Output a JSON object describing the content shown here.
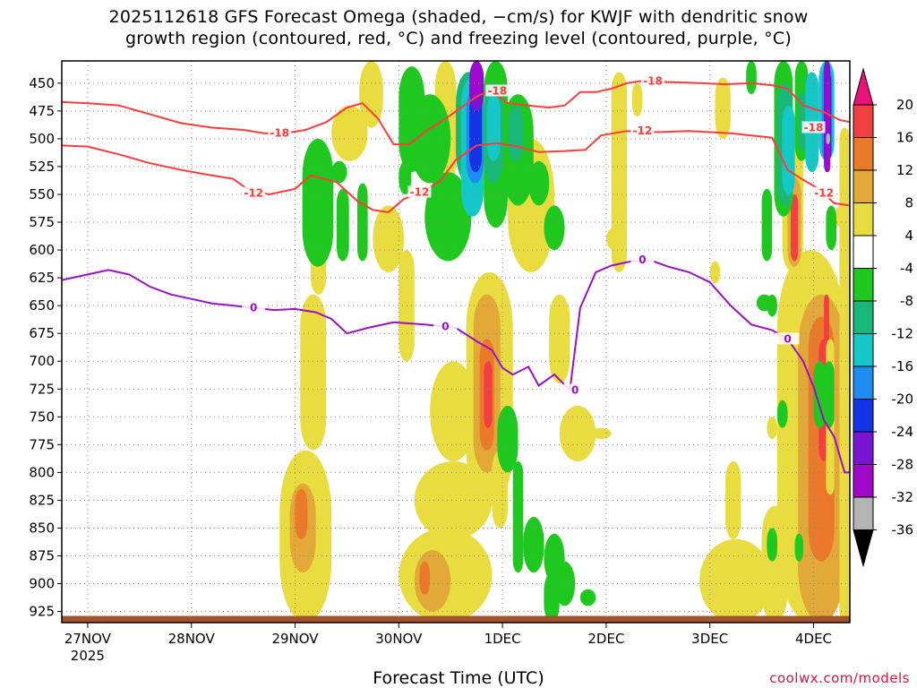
{
  "title_line1": "2025112618 GFS Forecast Omega (shaded, −cm/s) for KWJF with dendritic snow",
  "title_line2": "growth region (contoured, red, °C) and freezing level (contoured, purple, °C)",
  "credit": "coolwx.com/models",
  "chart_data": {
    "type": "heatmap",
    "title": "2025112618 GFS Forecast Omega (shaded, −cm/s) for KWJF with dendritic snow growth region (contoured, red, °C) and freezing level (contoured, purple, °C)",
    "xlabel": "Forecast Time (UTC)",
    "ylabel": "",
    "x_range_days": [
      -0.25,
      7.35
    ],
    "y_range_hpa": [
      430,
      935
    ],
    "y_inverted": true,
    "grid": true,
    "x_ticks": [
      {
        "label": "27NOV",
        "sub": "2025",
        "day": 0
      },
      {
        "label": "28NOV",
        "sub": "",
        "day": 1
      },
      {
        "label": "29NOV",
        "sub": "",
        "day": 2
      },
      {
        "label": "30NOV",
        "sub": "",
        "day": 3
      },
      {
        "label": "1DEC",
        "sub": "",
        "day": 4
      },
      {
        "label": "2DEC",
        "sub": "",
        "day": 5
      },
      {
        "label": "3DEC",
        "sub": "",
        "day": 6
      },
      {
        "label": "4DEC",
        "sub": "",
        "day": 7
      }
    ],
    "y_ticks": [
      "450",
      "475",
      "500",
      "525",
      "550",
      "575",
      "600",
      "625",
      "650",
      "675",
      "700",
      "725",
      "750",
      "775",
      "800",
      "825",
      "850",
      "875",
      "900",
      "925"
    ],
    "y_tick_values": [
      450,
      475,
      500,
      525,
      550,
      575,
      600,
      625,
      650,
      675,
      700,
      725,
      750,
      775,
      800,
      825,
      850,
      875,
      900,
      925
    ],
    "colorbar": {
      "label_values": [
        "20",
        "16",
        "12",
        "8",
        "4",
        "-4",
        "-8",
        "-12",
        "-16",
        "-20",
        "-24",
        "-28",
        "-32",
        "-36"
      ],
      "bins": [
        {
          "range": ">20",
          "color": "#e8127a"
        },
        {
          "range": "16 to 20",
          "color": "#f24040"
        },
        {
          "range": "12 to 16",
          "color": "#ea7a2a"
        },
        {
          "range": "8 to 12",
          "color": "#e2a838"
        },
        {
          "range": "4 to 8",
          "color": "#e8dc40"
        },
        {
          "range": "-4 to 4",
          "color": "#ffffff"
        },
        {
          "range": "-8 to -4",
          "color": "#1ec81e"
        },
        {
          "range": "-12 to -8",
          "color": "#1ab878"
        },
        {
          "range": "-16 to -12",
          "color": "#14c8c8"
        },
        {
          "range": "-20 to -16",
          "color": "#1e8cf0"
        },
        {
          "range": "-24 to -20",
          "color": "#1432e6"
        },
        {
          "range": "-28 to -24",
          "color": "#7814d2"
        },
        {
          "range": "-32 to -28",
          "color": "#a00ac8"
        },
        {
          "range": "-36 to -32",
          "color": "#b4b4b4"
        },
        {
          "range": "<-36",
          "color": "#000000"
        }
      ]
    },
    "contour_series": [
      {
        "name": "-18 °C isotherm",
        "color": "#ff3b3b",
        "label": "-18",
        "points": [
          [
            -0.25,
            467
          ],
          [
            0,
            468
          ],
          [
            0.3,
            470
          ],
          [
            0.6,
            478
          ],
          [
            0.9,
            486
          ],
          [
            1.2,
            490
          ],
          [
            1.5,
            492
          ],
          [
            1.7,
            495
          ],
          [
            1.9,
            495
          ],
          [
            2.1,
            492
          ],
          [
            2.3,
            485
          ],
          [
            2.5,
            472
          ],
          [
            2.65,
            468
          ],
          [
            2.8,
            482
          ],
          [
            2.95,
            505
          ],
          [
            3.1,
            505
          ],
          [
            3.25,
            494
          ],
          [
            3.45,
            482
          ],
          [
            3.6,
            472
          ],
          [
            3.75,
            462
          ],
          [
            3.8,
            460
          ],
          [
            3.9,
            458
          ],
          [
            4.05,
            468
          ],
          [
            4.25,
            470
          ],
          [
            4.45,
            472
          ],
          [
            4.6,
            470
          ],
          [
            4.75,
            458
          ],
          [
            4.9,
            458
          ],
          [
            5.05,
            455
          ],
          [
            5.2,
            450
          ],
          [
            5.35,
            448
          ],
          [
            5.6,
            449
          ],
          [
            5.9,
            450
          ],
          [
            6.15,
            451
          ],
          [
            6.4,
            450
          ],
          [
            6.6,
            452
          ],
          [
            6.75,
            455
          ],
          [
            6.9,
            470
          ],
          [
            7.1,
            476
          ],
          [
            7.25,
            483
          ],
          [
            7.35,
            485
          ]
        ],
        "label_positions": [
          [
            1.85,
            495
          ],
          [
            3.95,
            457
          ],
          [
            5.45,
            448
          ],
          [
            7.0,
            490
          ]
        ]
      },
      {
        "name": "-12 °C isotherm",
        "color": "#ff3b3b",
        "label": "-12",
        "points": [
          [
            -0.25,
            506
          ],
          [
            0,
            507
          ],
          [
            0.3,
            514
          ],
          [
            0.6,
            522
          ],
          [
            0.9,
            528
          ],
          [
            1.2,
            533
          ],
          [
            1.4,
            536
          ],
          [
            1.55,
            546
          ],
          [
            1.75,
            550
          ],
          [
            2.0,
            545
          ],
          [
            2.15,
            533
          ],
          [
            2.4,
            539
          ],
          [
            2.6,
            556
          ],
          [
            2.75,
            564
          ],
          [
            2.9,
            566
          ],
          [
            3.05,
            554
          ],
          [
            3.2,
            549
          ],
          [
            3.4,
            538
          ],
          [
            3.55,
            519
          ],
          [
            3.75,
            506
          ],
          [
            3.95,
            504
          ],
          [
            4.15,
            507
          ],
          [
            4.35,
            512
          ],
          [
            4.6,
            511
          ],
          [
            4.8,
            510
          ],
          [
            4.95,
            497
          ],
          [
            5.2,
            493
          ],
          [
            5.5,
            494
          ],
          [
            5.8,
            493
          ],
          [
            6.0,
            494
          ],
          [
            6.2,
            495
          ],
          [
            6.4,
            497
          ],
          [
            6.6,
            499
          ],
          [
            6.75,
            528
          ],
          [
            6.9,
            537
          ],
          [
            7.05,
            545
          ],
          [
            7.2,
            558
          ],
          [
            7.35,
            560
          ]
        ],
        "label_positions": [
          [
            1.6,
            549
          ],
          [
            3.2,
            548
          ],
          [
            5.35,
            493
          ],
          [
            7.1,
            549
          ]
        ]
      },
      {
        "name": "0 °C isotherm (freezing level)",
        "color": "#9a10c8",
        "label": "0",
        "points": [
          [
            -0.25,
            627
          ],
          [
            0,
            622
          ],
          [
            0.2,
            618
          ],
          [
            0.4,
            622
          ],
          [
            0.6,
            633
          ],
          [
            0.8,
            640
          ],
          [
            1.0,
            644
          ],
          [
            1.2,
            648
          ],
          [
            1.4,
            650
          ],
          [
            1.6,
            652
          ],
          [
            1.8,
            654
          ],
          [
            2.0,
            653
          ],
          [
            2.2,
            656
          ],
          [
            2.35,
            662
          ],
          [
            2.5,
            675
          ],
          [
            2.7,
            670
          ],
          [
            2.95,
            665
          ],
          [
            3.25,
            667
          ],
          [
            3.55,
            670
          ],
          [
            3.75,
            682
          ],
          [
            3.9,
            690
          ],
          [
            4.0,
            706
          ],
          [
            4.1,
            712
          ],
          [
            4.25,
            705
          ],
          [
            4.35,
            722
          ],
          [
            4.5,
            712
          ],
          [
            4.65,
            726
          ],
          [
            4.75,
            652
          ],
          [
            4.9,
            620
          ],
          [
            5.05,
            614
          ],
          [
            5.25,
            610
          ],
          [
            5.45,
            610
          ],
          [
            5.6,
            615
          ],
          [
            5.8,
            620
          ],
          [
            6.0,
            629
          ],
          [
            6.2,
            650
          ],
          [
            6.4,
            667
          ],
          [
            6.6,
            672
          ],
          [
            6.75,
            680
          ],
          [
            6.9,
            700
          ],
          [
            7.0,
            723
          ],
          [
            7.1,
            753
          ],
          [
            7.2,
            768
          ],
          [
            7.3,
            800
          ],
          [
            7.35,
            800
          ]
        ],
        "label_positions": [
          [
            1.6,
            652
          ],
          [
            3.45,
            669
          ],
          [
            4.7,
            726
          ],
          [
            5.35,
            609
          ],
          [
            6.75,
            680
          ]
        ]
      }
    ]
  }
}
